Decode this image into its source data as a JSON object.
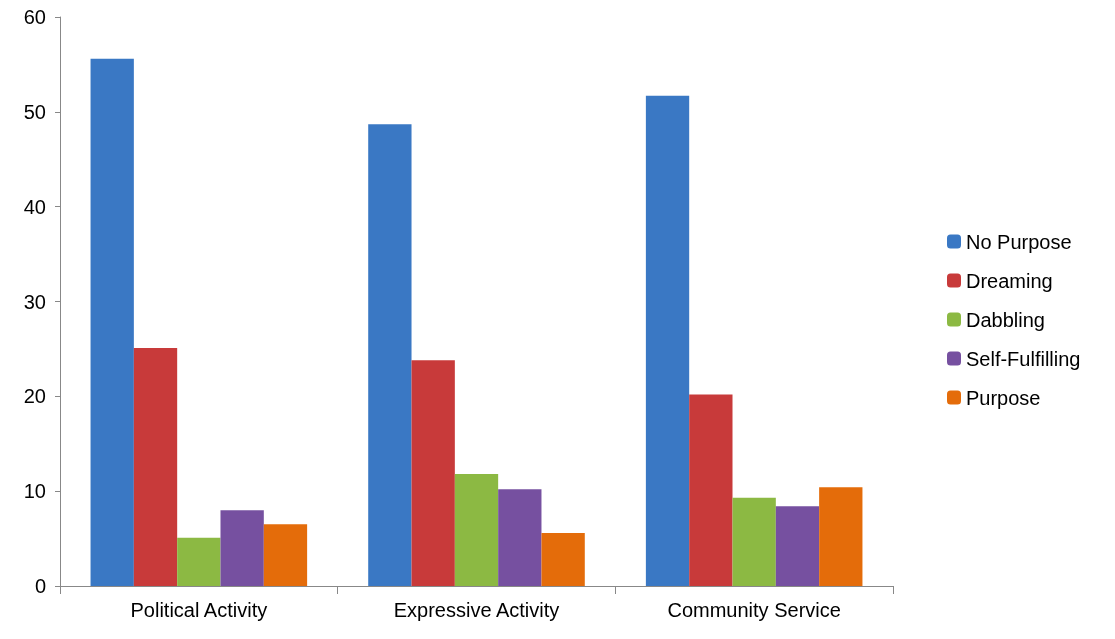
{
  "chart_data": {
    "type": "bar",
    "categories": [
      "Political Activity",
      "Expressive Activity",
      "Community Service"
    ],
    "series": [
      {
        "name": "No Purpose",
        "color": "#3a78c4",
        "values": [
          55.6,
          48.7,
          51.7
        ]
      },
      {
        "name": "Dreaming",
        "color": "#c83a3a",
        "values": [
          25.1,
          23.8,
          20.2
        ]
      },
      {
        "name": "Dabbling",
        "color": "#8cb943",
        "values": [
          5.1,
          11.8,
          9.3
        ]
      },
      {
        "name": "Self-Fulfilling",
        "color": "#7650a0",
        "values": [
          8.0,
          10.2,
          8.4
        ]
      },
      {
        "name": "Purpose",
        "color": "#e46c0a",
        "values": [
          6.5,
          5.6,
          10.4
        ]
      }
    ],
    "ylim": [
      0,
      60
    ],
    "yticks": [
      0,
      10,
      20,
      30,
      40,
      50,
      60
    ],
    "grid": false,
    "legend": "right"
  }
}
